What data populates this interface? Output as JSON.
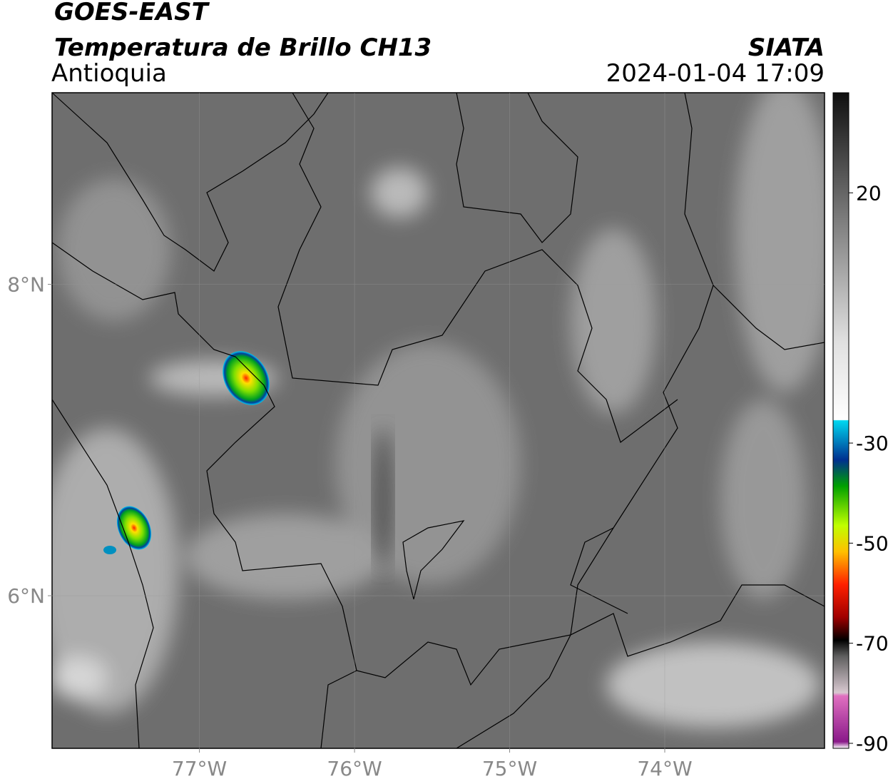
{
  "header": {
    "title": "GOES-EAST",
    "subtitle": "Temperatura de Brillo CH13",
    "region": "Antioquia",
    "source": "SIATA",
    "datetime": "2024-01-04 17:09"
  },
  "map": {
    "xlim": [
      -77.95,
      -72.97
    ],
    "ylim": [
      5.02,
      9.23
    ],
    "xticks": [
      {
        "value": -77,
        "label": "77°W"
      },
      {
        "value": -76,
        "label": "76°W"
      },
      {
        "value": -75,
        "label": "75°W"
      },
      {
        "value": -74,
        "label": "74°W"
      }
    ],
    "yticks": [
      {
        "value": 8,
        "label": "8°N"
      },
      {
        "value": 6,
        "label": "6°N"
      }
    ]
  },
  "colorbar": {
    "lim": [
      -91,
      40
    ],
    "ticks": [
      20,
      -30,
      -50,
      -70,
      -90
    ]
  }
}
